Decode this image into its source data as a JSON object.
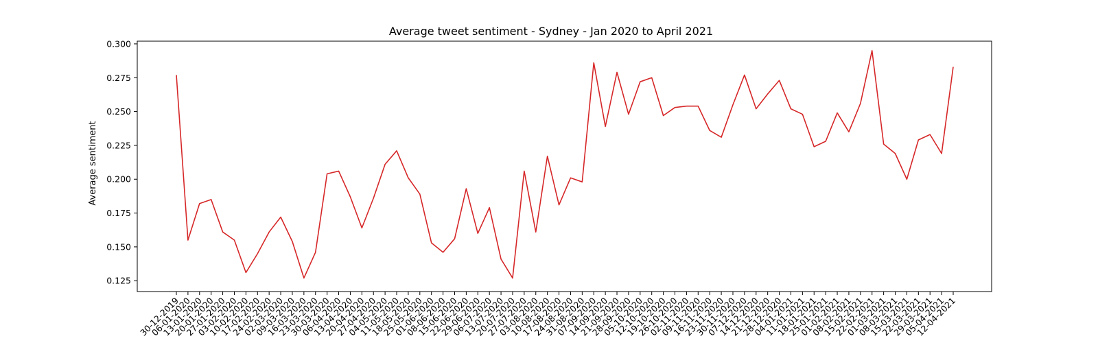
{
  "chart_data": {
    "type": "line",
    "title": "Average tweet sentiment - Sydney - Jan 2020 to April 2021",
    "xlabel": "",
    "ylabel": "Average sentiment",
    "ylim": [
      0.117,
      0.302
    ],
    "yticks": [
      "0.125",
      "0.150",
      "0.175",
      "0.200",
      "0.225",
      "0.250",
      "0.275",
      "0.300"
    ],
    "grid": false,
    "colors": {
      "line": "#d62728"
    },
    "categories": [
      "30-12-2019",
      "06-01-2020",
      "13-01-2020",
      "20-01-2020",
      "27-01-2020",
      "03-02-2020",
      "10-02-2020",
      "17-02-2020",
      "24-02-2020",
      "02-03-2020",
      "09-03-2020",
      "16-03-2020",
      "23-03-2020",
      "30-03-2020",
      "06-04-2020",
      "13-04-2020",
      "20-04-2020",
      "27-04-2020",
      "04-05-2020",
      "11-05-2020",
      "18-05-2020",
      "25-05-2020",
      "01-06-2020",
      "08-06-2020",
      "15-06-2020",
      "22-06-2020",
      "29-06-2020",
      "06-07-2020",
      "13-07-2020",
      "20-07-2020",
      "27-07-2020",
      "03-08-2020",
      "10-08-2020",
      "17-08-2020",
      "24-08-2020",
      "31-08-2020",
      "07-09-2020",
      "14-09-2020",
      "21-09-2020",
      "28-09-2020",
      "05-10-2020",
      "12-10-2020",
      "19-10-2020",
      "26-10-2020",
      "02-11-2020",
      "09-11-2020",
      "16-11-2020",
      "23-11-2020",
      "30-11-2020",
      "07-12-2020",
      "14-12-2020",
      "21-12-2020",
      "28-12-2020",
      "04-01-2021",
      "11-01-2021",
      "18-01-2021",
      "25-01-2021",
      "01-02-2021",
      "08-02-2021",
      "15-02-2021",
      "22-02-2021",
      "01-03-2021",
      "08-03-2021",
      "15-03-2021",
      "22-03-2021",
      "29-03-2021",
      "05-04-2021",
      "12-04-2021"
    ],
    "values": [
      0.277,
      0.155,
      0.182,
      0.185,
      0.161,
      0.155,
      0.131,
      0.145,
      0.161,
      0.172,
      0.154,
      0.127,
      0.146,
      0.204,
      0.206,
      0.187,
      0.164,
      0.186,
      0.211,
      0.221,
      0.201,
      0.189,
      0.153,
      0.146,
      0.156,
      0.193,
      0.16,
      0.179,
      0.141,
      0.127,
      0.206,
      0.161,
      0.217,
      0.181,
      0.201,
      0.198,
      0.286,
      0.239,
      0.279,
      0.248,
      0.272,
      0.275,
      0.247,
      0.253,
      0.254,
      0.254,
      0.236,
      0.231,
      0.255,
      0.277,
      0.252,
      0.263,
      0.273,
      0.252,
      0.248,
      0.224,
      0.228,
      0.249,
      0.235,
      0.256,
      0.295,
      0.226,
      0.219,
      0.2,
      0.229,
      0.233,
      0.219,
      0.283
    ]
  }
}
